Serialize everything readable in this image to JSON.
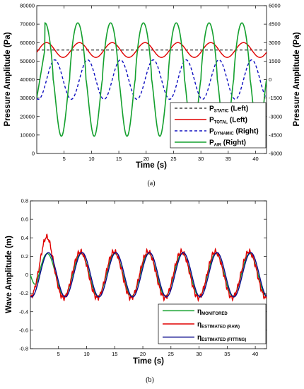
{
  "chart_data": [
    {
      "type": "line",
      "caption": "(a)",
      "xlabel": "Time (s)",
      "ylabel_left": "Pressure Amplitude (Pa)",
      "ylabel_right": "Pressure Amplitude (Pa)",
      "xlim": [
        0,
        42
      ],
      "ylim_left": [
        0,
        80000
      ],
      "ylim_right": [
        -6000,
        6000
      ],
      "xticks": [
        "5",
        "10",
        "15",
        "20",
        "25",
        "30",
        "35",
        "40"
      ],
      "yticks_left": [
        "0",
        "10000",
        "20000",
        "30000",
        "40000",
        "50000",
        "60000",
        "70000",
        "80000"
      ],
      "yticks_right": [
        "-6000",
        "-4500",
        "-3000",
        "-1500",
        "0",
        "1500",
        "3000",
        "4500",
        "6000"
      ],
      "legend_position": "bottom-right",
      "series": [
        {
          "name": "P_STATIC (Left)",
          "label_main": "P",
          "label_sub": "STATIC",
          "label_tail": " (Left)",
          "axis": "left",
          "color": "#404040",
          "dash": "4,3",
          "period": 6.0,
          "phase": 0,
          "mean": 56000,
          "amp": 0,
          "x": [
            0,
            42
          ],
          "y": [
            56000,
            56000
          ]
        },
        {
          "name": "P_TOTAL (Left)",
          "label_main": "P",
          "label_sub": "TOTAL",
          "label_tail": " (Left)",
          "axis": "left",
          "color": "#e00000",
          "dash": "",
          "period": 6.0,
          "phase": 1.8,
          "mean": 56000,
          "amp": 4000,
          "x": [
            1.8,
            4.8,
            7.8,
            10.8,
            13.8,
            16.8,
            19.8,
            22.8,
            25.8,
            28.8,
            31.8,
            34.8,
            37.8,
            40.8
          ],
          "y": [
            60000,
            52000,
            60000,
            52000,
            60000,
            52000,
            60000,
            52000,
            60000,
            52000,
            60000,
            52000,
            60000,
            52000
          ]
        },
        {
          "name": "P_DYNAMIC (Right)",
          "label_main": "P",
          "label_sub": "DYNAMIC",
          "label_tail": " (Right)",
          "axis": "right",
          "color": "#1010c0",
          "dash": "4,3",
          "period": 6.0,
          "phase": 3.3,
          "mean": 0,
          "amp": 1600,
          "x": [
            3.3,
            6.3,
            9.3,
            12.3,
            15.3,
            18.3,
            21.3,
            24.3,
            27.3,
            30.3,
            33.3,
            36.3,
            39.3
          ],
          "y": [
            1600,
            -1600,
            1600,
            -1600,
            1600,
            -1600,
            1600,
            -1600,
            1600,
            -1600,
            1600,
            -1600,
            1600
          ]
        },
        {
          "name": "P_AIR (Right)",
          "label_main": "P",
          "label_sub": "AIR",
          "label_tail": " (Right)",
          "axis": "right",
          "color": "#14a02e",
          "dash": "",
          "period": 6.0,
          "phase": 1.5,
          "mean": 0,
          "amp": 4600,
          "x": [
            1.5,
            4.5,
            7.5,
            10.5,
            13.5,
            16.5,
            19.5,
            22.5,
            25.5,
            28.5,
            31.5,
            34.5,
            37.5,
            40.5
          ],
          "y": [
            2500,
            -4800,
            4300,
            -4500,
            4300,
            -4500,
            4300,
            -4500,
            4300,
            -4500,
            4300,
            -4500,
            4300,
            -4500
          ]
        }
      ]
    },
    {
      "type": "line",
      "caption": "(b)",
      "xlabel": "Time (s)",
      "ylabel": "Wave Amplitude (m)",
      "xlim": [
        0,
        42
      ],
      "ylim": [
        -0.8,
        0.8
      ],
      "xticks": [
        "5",
        "10",
        "15",
        "20",
        "25",
        "30",
        "35",
        "40"
      ],
      "yticks": [
        "-0.8",
        "-0.6",
        "-0.4",
        "-0.2",
        "0",
        "0.2",
        "0.4",
        "0.6",
        "0.8"
      ],
      "legend_position": "bottom-right",
      "series": [
        {
          "name": "η_MONITORED",
          "label_main": "η",
          "label_sub": "MONITORED",
          "label_tail": "",
          "color": "#14a02e",
          "dash": "",
          "period": 6.0,
          "phase": 3.0,
          "mean": 0,
          "amp": 0.23,
          "x": [
            3.0,
            6.0,
            9.0,
            12.0,
            15.0,
            18.0,
            21.0,
            24.0,
            27.0,
            30.0,
            33.0,
            36.0,
            39.0,
            42.0
          ],
          "y": [
            0.23,
            -0.23,
            0.23,
            -0.23,
            0.23,
            -0.23,
            0.23,
            -0.23,
            0.23,
            -0.23,
            0.23,
            -0.23,
            0.23,
            -0.23
          ]
        },
        {
          "name": "η_ESTIMATED (RAW)",
          "label_main": "η",
          "label_sub": "ESTIMATED (RAW)",
          "label_tail": "",
          "color": "#e00000",
          "dash": "",
          "period": 6.0,
          "phase": 2.9,
          "mean": 0,
          "amp": 0.25,
          "x": [
            2.9,
            5.9,
            8.9,
            11.9,
            14.9,
            17.9,
            20.9,
            23.9,
            26.9,
            29.9,
            32.9,
            35.9,
            38.9,
            41.9
          ],
          "y": [
            0.41,
            -0.2,
            0.25,
            -0.2,
            0.25,
            -0.2,
            0.25,
            -0.2,
            0.25,
            -0.2,
            0.25,
            -0.2,
            0.25,
            -0.2
          ]
        },
        {
          "name": "η_ESTIMATED (FITTING)",
          "label_main": "η",
          "label_sub": "ESTIMATED (FITTING)",
          "label_tail": "",
          "color": "#0a0a8c",
          "dash": "",
          "period": 6.0,
          "phase": 3.2,
          "mean": 0,
          "amp": 0.24,
          "x": [
            3.2,
            6.2,
            9.2,
            12.2,
            15.2,
            18.2,
            21.2,
            24.2,
            27.2,
            30.2,
            33.2,
            36.2,
            39.2,
            42.2
          ],
          "y": [
            0.24,
            -0.24,
            0.24,
            -0.24,
            0.24,
            -0.24,
            0.24,
            -0.24,
            0.24,
            -0.24,
            0.24,
            -0.24,
            0.24,
            -0.24
          ]
        }
      ]
    }
  ]
}
